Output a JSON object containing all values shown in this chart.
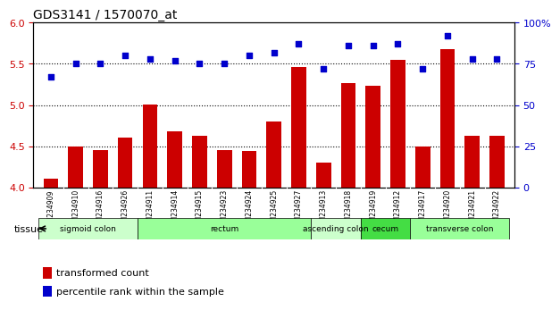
{
  "title": "GDS3141 / 1570070_at",
  "samples": [
    "GSM234909",
    "GSM234910",
    "GSM234916",
    "GSM234926",
    "GSM234911",
    "GSM234914",
    "GSM234915",
    "GSM234923",
    "GSM234924",
    "GSM234925",
    "GSM234927",
    "GSM234913",
    "GSM234918",
    "GSM234919",
    "GSM234912",
    "GSM234917",
    "GSM234920",
    "GSM234921",
    "GSM234922"
  ],
  "bar_values": [
    4.1,
    4.5,
    4.45,
    4.6,
    5.01,
    4.68,
    4.62,
    4.45,
    4.44,
    4.8,
    5.46,
    4.3,
    5.27,
    5.23,
    5.55,
    4.5,
    5.68,
    4.63,
    4.63
  ],
  "dot_values": [
    67,
    75,
    75,
    80,
    78,
    77,
    75,
    75,
    80,
    82,
    87,
    72,
    86,
    86,
    87,
    72,
    92,
    78,
    78
  ],
  "bar_color": "#cc0000",
  "dot_color": "#0000cc",
  "ylim_left": [
    4.0,
    6.0
  ],
  "ylim_right": [
    0,
    100
  ],
  "yticks_left": [
    4.0,
    4.5,
    5.0,
    5.5,
    6.0
  ],
  "yticks_right": [
    0,
    25,
    50,
    75,
    100
  ],
  "ytick_right_labels": [
    "0",
    "25",
    "50",
    "75",
    "100%"
  ],
  "hlines": [
    4.5,
    5.0,
    5.5
  ],
  "tissues": [
    {
      "label": "sigmoid colon",
      "start": 0,
      "end": 4,
      "color": "#ccffcc"
    },
    {
      "label": "rectum",
      "start": 4,
      "end": 11,
      "color": "#99ff99"
    },
    {
      "label": "ascending colon",
      "start": 11,
      "end": 13,
      "color": "#ccffcc"
    },
    {
      "label": "cecum",
      "start": 13,
      "end": 15,
      "color": "#44dd44"
    },
    {
      "label": "transverse colon",
      "start": 15,
      "end": 19,
      "color": "#99ff99"
    }
  ],
  "tissue_label": "tissue",
  "legend_bar": "transformed count",
  "legend_dot": "percentile rank within the sample",
  "bg_color": "#d0d0d0",
  "plot_bg": "#ffffff"
}
